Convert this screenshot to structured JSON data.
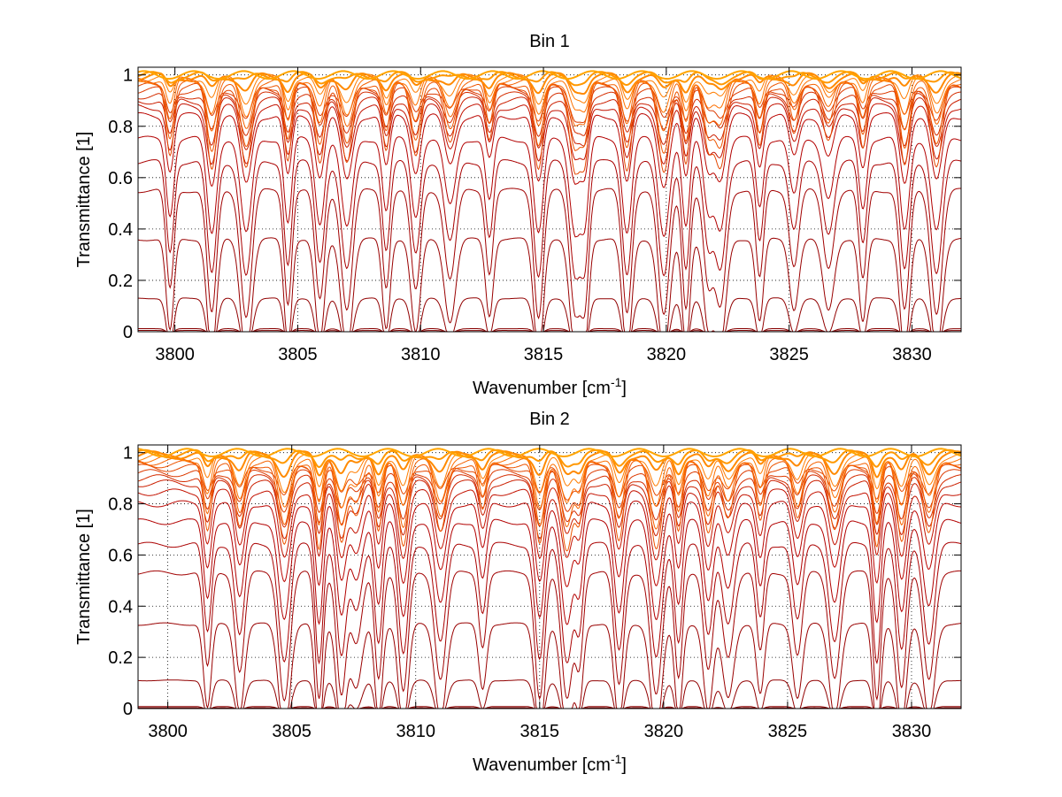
{
  "chart_data": [
    {
      "type": "line",
      "title": "Bin 1",
      "xlabel": "Wavenumber [cm",
      "xlabel_superscript": "-1",
      "xlabel_suffix": "]",
      "ylabel": "Transmittance [1]",
      "xlim": [
        3798.5,
        3832
      ],
      "ylim": [
        0,
        1.03
      ],
      "grid": true,
      "legend": "none",
      "x_ticks": [
        3800,
        3805,
        3810,
        3815,
        3820,
        3825,
        3830
      ],
      "y_ticks": [
        0,
        0.2,
        0.4,
        0.6,
        0.8,
        1
      ],
      "x_tick_labels": [
        "3800",
        "3805",
        "3810",
        "3815",
        "3820",
        "3825",
        "3830"
      ],
      "y_tick_labels": [
        "0",
        "0.2",
        "0.4",
        "0.6",
        "0.8",
        "1"
      ],
      "absorption_line_centers": [
        3799.8,
        3801.5,
        3802.9,
        3804.6,
        3805.9,
        3807.0,
        3808.6,
        3809.8,
        3811.2,
        3812.8,
        3814.8,
        3816.3,
        3816.7,
        3818.4,
        3819.9,
        3820.8,
        3821.7,
        3822.2,
        3823.8,
        3825.2,
        3826.6,
        3828.0,
        3829.7,
        3831.0
      ],
      "series_continuum_levels": [
        0.005,
        0.012,
        0.13,
        0.36,
        0.55,
        0.66,
        0.75,
        0.84,
        0.875,
        0.9,
        0.92,
        0.94,
        0.955,
        0.965,
        0.975,
        0.982,
        0.988,
        0.993,
        0.997,
        1.0
      ]
    },
    {
      "type": "line",
      "title": "Bin 2",
      "xlabel": "Wavenumber [cm",
      "xlabel_superscript": "-1",
      "xlabel_suffix": "]",
      "ylabel": "Transmittance [1]",
      "xlim": [
        3798.8,
        3832
      ],
      "ylim": [
        0,
        1.03
      ],
      "grid": true,
      "legend": "none",
      "x_ticks": [
        3800,
        3805,
        3810,
        3815,
        3820,
        3825,
        3830
      ],
      "y_ticks": [
        0,
        0.2,
        0.4,
        0.6,
        0.8,
        1
      ],
      "x_tick_labels": [
        "3800",
        "3805",
        "3810",
        "3815",
        "3820",
        "3825",
        "3830"
      ],
      "y_tick_labels": [
        "0",
        "0.2",
        "0.4",
        "0.6",
        "0.8",
        "1"
      ],
      "absorption_line_centers": [
        3801.6,
        3802.9,
        3804.7,
        3806.1,
        3807.0,
        3807.6,
        3808.5,
        3809.5,
        3811.0,
        3812.7,
        3815.0,
        3816.1,
        3816.6,
        3818.2,
        3819.7,
        3820.6,
        3821.8,
        3822.6,
        3823.9,
        3825.4,
        3826.9,
        3828.6,
        3829.6,
        3830.7
      ],
      "series_continuum_levels": [
        0.003,
        0.008,
        0.11,
        0.33,
        0.53,
        0.64,
        0.73,
        0.8,
        0.845,
        0.88,
        0.9,
        0.92,
        0.94,
        0.955,
        0.965,
        0.975,
        0.983,
        0.99,
        0.995,
        1.0
      ]
    }
  ]
}
